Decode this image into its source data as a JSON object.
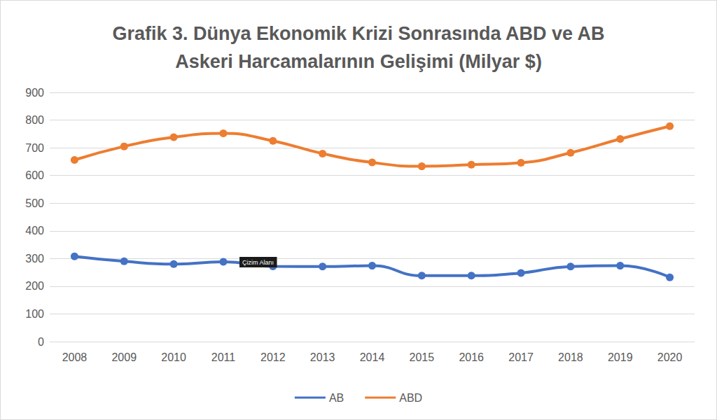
{
  "chart_data": {
    "type": "line",
    "title": "Grafik 3. Dünya Ekonomik Krizi Sonrasında ABD ve AB\nAskeri Harcamalarının Gelişimi (Milyar $)",
    "categories": [
      "2008",
      "2009",
      "2010",
      "2011",
      "2012",
      "2013",
      "2014",
      "2015",
      "2016",
      "2017",
      "2018",
      "2019",
      "2020"
    ],
    "series": [
      {
        "name": "AB",
        "color": "#4472c4",
        "marker": "circle",
        "line_style": "smooth",
        "values": [
          308,
          290,
          280,
          288,
          272,
          271,
          274,
          238,
          238,
          248,
          271,
          274,
          232
        ]
      },
      {
        "name": "ABD",
        "color": "#ed7d31",
        "marker": "circle",
        "line_style": "smooth",
        "values": [
          656,
          705,
          738,
          752,
          725,
          679,
          647,
          633,
          639,
          646,
          682,
          732,
          778
        ]
      }
    ],
    "ylim": [
      0,
      900
    ],
    "yticks": [
      0,
      100,
      200,
      300,
      400,
      500,
      600,
      700,
      800,
      900
    ],
    "grid": true,
    "legend": "bottom",
    "annotations": [
      "Çizim Alanı"
    ]
  }
}
